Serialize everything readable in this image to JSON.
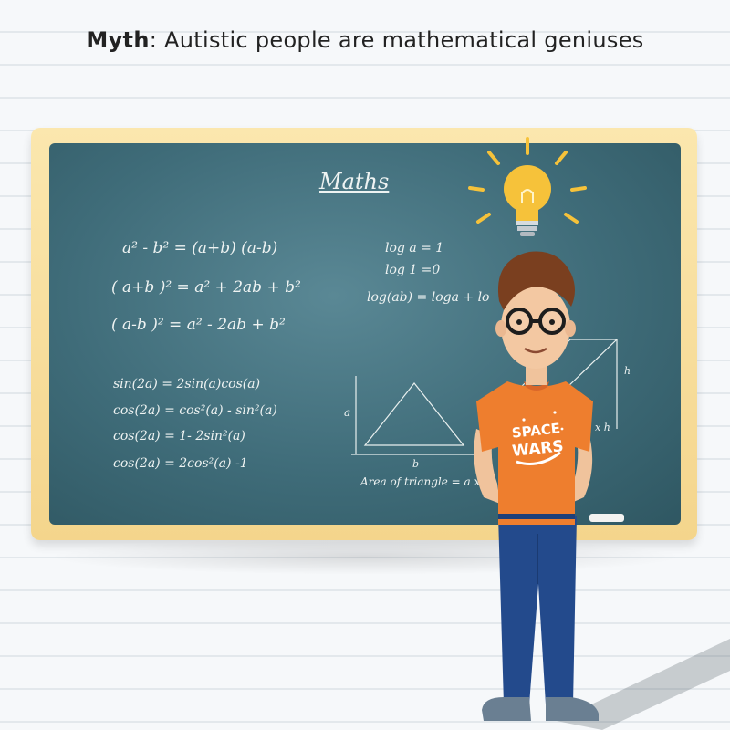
{
  "caption": {
    "bold": "Myth",
    "rest": ": Autistic people are mathematical geniuses"
  },
  "board": {
    "title": "Maths",
    "left_formulas": [
      "a² - b² = (a+b) (a-b)",
      "( a+b )² = a² + 2ab + b²",
      "( a-b )² = a² - 2ab + b²"
    ],
    "trig_formulas": [
      "sin(2a) = 2sin(a)cos(a)",
      "cos(2a) = cos²(a) - sin²(a)",
      "cos(2a) = 1- 2sin²(a)",
      "cos(2a) = 2cos²(a) -1"
    ],
    "log_formulas": [
      "log a = 1",
      "log 1 =0",
      "log(ab) = loga + lo"
    ],
    "triangle_labels": {
      "a": "a",
      "b": "b",
      "h": "h",
      "h2": "x h"
    },
    "triangle_caption": "Area of triangle = a x b"
  },
  "shirt_text": [
    "SPACE",
    "WARS"
  ],
  "colors": {
    "board": "#3f6c79",
    "frame": "#f4d58c",
    "shirt": "#ee7e2e",
    "pants": "#234a8c",
    "bulb": "#f6c23a"
  }
}
